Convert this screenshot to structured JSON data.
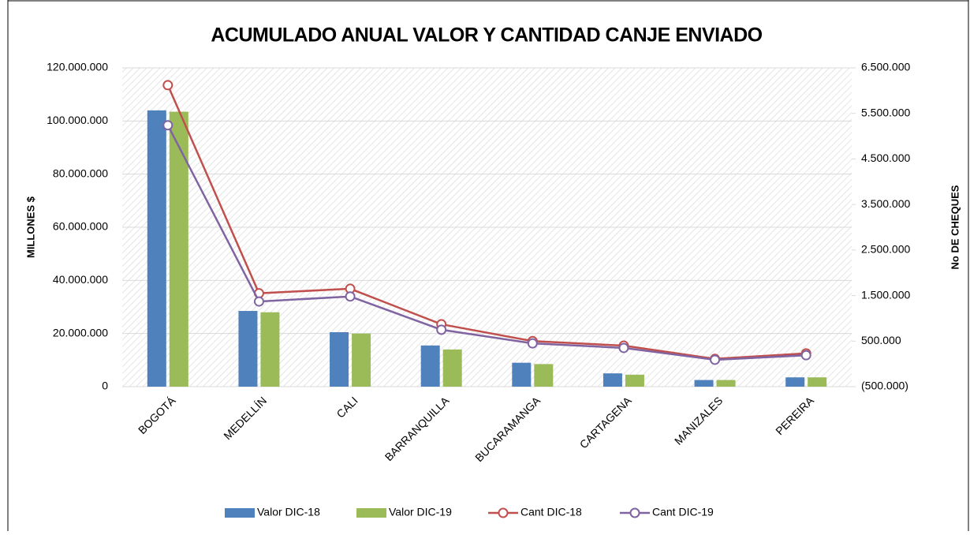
{
  "chart_data": {
    "type": "bar",
    "title": "ACUMULADO ANUAL VALOR Y CANTIDAD CANJE ENVIADO",
    "y_label": "MILLONES $",
    "y2_label": "No DE CHEQUES",
    "categories": [
      "BOGOTÁ",
      "MEDELLÍN",
      "CALI",
      "BARRANQUILLA",
      "BUCARAMANGA",
      "CARTAGENA",
      "MANIZALES",
      "PEREIRA"
    ],
    "series": [
      {
        "name": "Valor DIC-18",
        "type": "bar",
        "color": "#4f81bd",
        "values": [
          104000000,
          28500000,
          20500000,
          15500000,
          9000000,
          5000000,
          2500000,
          3500000
        ]
      },
      {
        "name": "Valor DIC-19",
        "type": "bar",
        "color": "#9bbb59",
        "values": [
          103500000,
          28000000,
          20000000,
          14000000,
          8500000,
          4500000,
          2500000,
          3500000
        ]
      },
      {
        "name": "Cant DIC-18",
        "type": "line",
        "axis": "y2",
        "color": "#c0504d",
        "values": [
          6120000,
          1550000,
          1650000,
          870000,
          500000,
          400000,
          110000,
          230000
        ]
      },
      {
        "name": "Cant DIC-19",
        "type": "line",
        "axis": "y2",
        "color": "#8064a2",
        "values": [
          5240000,
          1370000,
          1480000,
          750000,
          450000,
          350000,
          90000,
          190000
        ]
      }
    ],
    "ylim": [
      0,
      120000000
    ],
    "yticks": [
      0,
      {
        "value": 20000000,
        "label": "20.000.000"
      },
      {
        "value": 40000000,
        "label": "40.000.000"
      },
      {
        "value": 60000000,
        "label": "60.000.000"
      },
      {
        "value": 80000000,
        "label": "80.000.000"
      },
      {
        "value": 100000000,
        "label": "100.000.000"
      },
      {
        "value": 120000000,
        "label": "120.000.000"
      }
    ],
    "y2lim": [
      -500000,
      6500000
    ],
    "y2ticks": [
      {
        "value": -500000,
        "label": "(500.000)"
      },
      {
        "value": 500000,
        "label": "500.000"
      },
      {
        "value": 1500000,
        "label": "1.500.000"
      },
      {
        "value": 2500000,
        "label": "2.500.000"
      },
      {
        "value": 3500000,
        "label": "3.500.000"
      },
      {
        "value": 4500000,
        "label": "4.500.000"
      },
      {
        "value": 5500000,
        "label": "5.500.000"
      },
      {
        "value": 6500000,
        "label": "6.500.000"
      }
    ],
    "grid": true,
    "legend": "bottom"
  }
}
